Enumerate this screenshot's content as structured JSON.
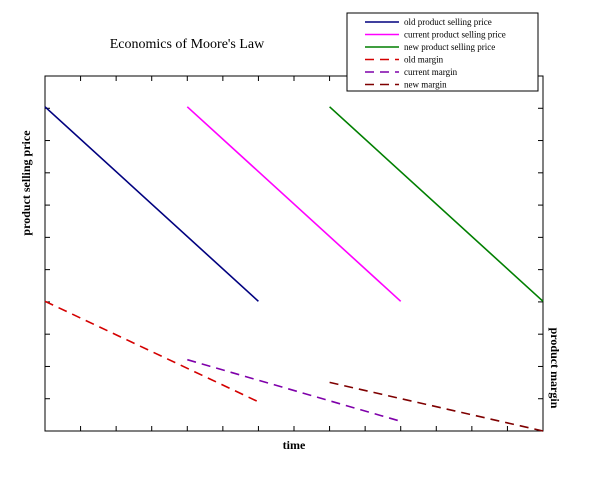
{
  "chart_data": {
    "type": "line",
    "title": "Economics of Moore's Law",
    "xlabel": "time",
    "ylabel": "product selling price",
    "ylabel_right": "product margin",
    "xlim": [
      0,
      14
    ],
    "ylim": [
      0,
      10
    ],
    "grid": false,
    "legend_position": "top-right",
    "series": [
      {
        "name": "old product selling price",
        "color": "#00007f",
        "dash": false,
        "x": [
          0,
          6
        ],
        "y": [
          10,
          4
        ]
      },
      {
        "name": "current product selling price",
        "color": "#ff00ff",
        "dash": false,
        "x": [
          4,
          10
        ],
        "y": [
          10,
          4
        ]
      },
      {
        "name": "new product selling price",
        "color": "#007f00",
        "dash": false,
        "x": [
          8,
          14
        ],
        "y": [
          10,
          4
        ]
      },
      {
        "name": "old margin",
        "color": "#d40000",
        "dash": true,
        "x": [
          0,
          6
        ],
        "y": [
          4,
          0.9
        ]
      },
      {
        "name": "current margin",
        "color": "#7f00aa",
        "dash": true,
        "x": [
          4,
          10
        ],
        "y": [
          2.2,
          0.3
        ]
      },
      {
        "name": "new margin",
        "color": "#7f0000",
        "dash": true,
        "x": [
          8,
          14
        ],
        "y": [
          1.5,
          0
        ]
      }
    ]
  }
}
